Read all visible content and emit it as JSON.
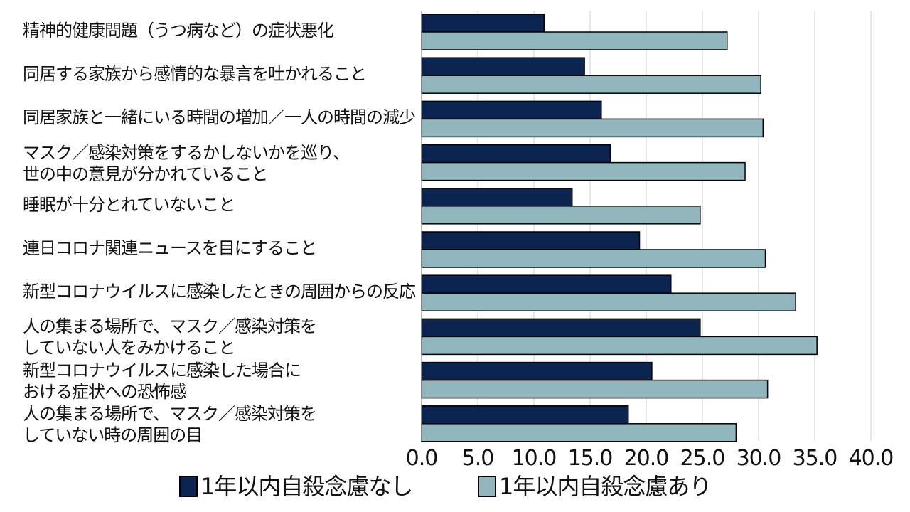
{
  "chart_data": {
    "type": "bar",
    "orientation": "horizontal",
    "categories": [
      [
        "精神的健康問題（うつ病など）の症状悪化"
      ],
      [
        "同居する家族から感情的な暴言を吐かれること"
      ],
      [
        "同居家族と一緒にいる時間の増加／一人の時間の減少"
      ],
      [
        "マスク／感染対策をするかしないかを巡り、",
        "世の中の意見が分かれていること"
      ],
      [
        "睡眠が十分とれていないこと"
      ],
      [
        "連日コロナ関連ニュースを目にすること"
      ],
      [
        "新型コロナウイルスに感染したときの周囲からの反応"
      ],
      [
        "人の集まる場所で、マスク／感染対策を",
        "していない人をみかけること"
      ],
      [
        "新型コロナウイルスに感染した場合に",
        "おける症状への恐怖感"
      ],
      [
        "人の集まる場所で、マスク／感染対策を",
        "していない時の周囲の目"
      ]
    ],
    "series": [
      {
        "name": "1年以内自殺念慮なし",
        "color": "#0c2550",
        "values": [
          10.9,
          14.5,
          16.0,
          16.8,
          13.4,
          19.4,
          22.2,
          24.8,
          20.5,
          18.4
        ]
      },
      {
        "name": "1年以内自殺念慮あり",
        "color": "#92b6bd",
        "values": [
          27.2,
          30.2,
          30.4,
          28.8,
          24.8,
          30.6,
          33.3,
          35.2,
          30.8,
          28.0
        ]
      }
    ],
    "xlim": [
      0,
      40
    ],
    "xticks": [
      "0.0",
      "5.0",
      "10.0",
      "15.0",
      "20.0",
      "25.0",
      "30.0",
      "35.0",
      "40.0"
    ],
    "grid": true,
    "legend": "bottom"
  }
}
